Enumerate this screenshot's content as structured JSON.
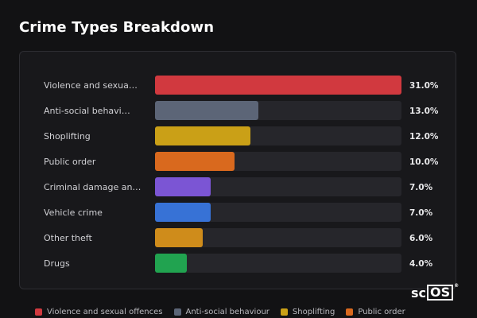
{
  "title": "Crime Types Breakdown",
  "chart_data": {
    "type": "bar",
    "orientation": "horizontal",
    "categories": [
      "Violence and sexua…",
      "Anti-social behavi…",
      "Shoplifting",
      "Public order",
      "Criminal damage an…",
      "Vehicle crime",
      "Other theft",
      "Drugs"
    ],
    "values": [
      31.0,
      13.0,
      12.0,
      10.0,
      7.0,
      7.0,
      6.0,
      4.0
    ],
    "value_labels": [
      "31.0%",
      "13.0%",
      "12.0%",
      "10.0%",
      "7.0%",
      "7.0%",
      "6.0%",
      "4.0%"
    ],
    "colors": [
      "#d1393f",
      "#5c6577",
      "#caa017",
      "#d9691e",
      "#7b55d4",
      "#3772d6",
      "#cf8c1b",
      "#21a350"
    ],
    "xlim": [
      0,
      31
    ],
    "grid": false,
    "legend": {
      "placement": "bottom",
      "entries": [
        {
          "label": "Violence and sexual offences",
          "color": "#d1393f"
        },
        {
          "label": "Anti-social behaviour",
          "color": "#5c6577"
        },
        {
          "label": "Shoplifting",
          "color": "#caa017"
        },
        {
          "label": "Public order",
          "color": "#d9691e"
        }
      ]
    }
  },
  "logo": {
    "text_plain": "sc",
    "text_boxed": "OS",
    "mark": "®"
  }
}
